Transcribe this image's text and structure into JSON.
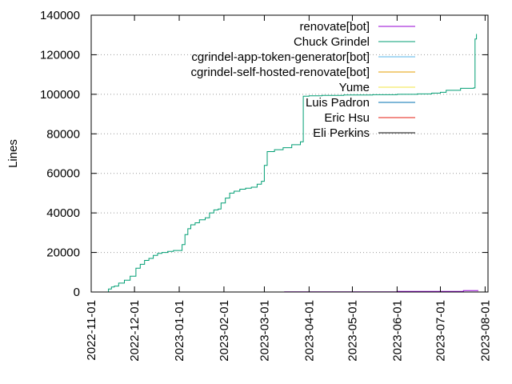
{
  "chart_data": {
    "type": "line",
    "title": "",
    "xlabel": "",
    "ylabel": "Lines",
    "x_type": "date",
    "xlim": [
      "2022-11-01",
      "2023-08-03"
    ],
    "ylim": [
      0,
      140000
    ],
    "x_ticks": [
      "2022-11-01",
      "2022-12-01",
      "2023-01-01",
      "2023-02-01",
      "2023-03-01",
      "2023-04-01",
      "2023-05-01",
      "2023-06-01",
      "2023-07-01",
      "2023-08-01"
    ],
    "y_ticks": [
      0,
      20000,
      40000,
      60000,
      80000,
      100000,
      120000,
      140000
    ],
    "y_tick_labels": [
      "0",
      "20000",
      "40000",
      "60000",
      "80000",
      "100000",
      "120000",
      "140000"
    ],
    "grid": "horizontal dotted",
    "legend_position": "top-right",
    "series": [
      {
        "name": "renovate[bot]",
        "color": "#9400d3",
        "x": [
          "2023-02-01",
          "2023-03-15",
          "2023-06-01",
          "2023-07-17",
          "2023-07-27"
        ],
        "y": [
          0,
          100,
          300,
          700,
          900
        ]
      },
      {
        "name": "Chuck Grindel",
        "color": "#009e73",
        "x": [
          "2022-11-09",
          "2022-11-13",
          "2022-11-15",
          "2022-11-17",
          "2022-11-20",
          "2022-11-24",
          "2022-11-28",
          "2022-12-02",
          "2022-12-05",
          "2022-12-08",
          "2022-12-11",
          "2022-12-14",
          "2022-12-17",
          "2022-12-20",
          "2022-12-24",
          "2022-12-28",
          "2023-01-03",
          "2023-01-05",
          "2023-01-07",
          "2023-01-09",
          "2023-01-12",
          "2023-01-15",
          "2023-01-19",
          "2023-01-22",
          "2023-01-25",
          "2023-01-28",
          "2023-01-30",
          "2023-02-02",
          "2023-02-05",
          "2023-02-08",
          "2023-02-12",
          "2023-02-16",
          "2023-02-20",
          "2023-02-24",
          "2023-02-27",
          "2023-03-01",
          "2023-03-03",
          "2023-03-08",
          "2023-03-14",
          "2023-03-20",
          "2023-03-26",
          "2023-03-28",
          "2023-04-01",
          "2023-04-10",
          "2023-04-25",
          "2023-05-15",
          "2023-06-01",
          "2023-06-15",
          "2023-06-25",
          "2023-07-01",
          "2023-07-05",
          "2023-07-15",
          "2023-07-24",
          "2023-07-25",
          "2023-07-26"
        ],
        "y": [
          0,
          1500,
          2500,
          3000,
          4500,
          6000,
          8000,
          12000,
          14000,
          16000,
          17000,
          18500,
          19500,
          20000,
          20500,
          21000,
          24000,
          29000,
          32000,
          34000,
          35000,
          36500,
          37500,
          40000,
          41500,
          42000,
          45000,
          47500,
          50000,
          51000,
          52000,
          52500,
          53000,
          54500,
          56000,
          64000,
          71000,
          72000,
          73000,
          74500,
          76000,
          99000,
          99200,
          99400,
          99600,
          99800,
          100000,
          100200,
          100600,
          101000,
          102000,
          103000,
          103200,
          128000,
          130500
        ]
      },
      {
        "name": "cgrindel-app-token-generator[bot]",
        "color": "#56b4e9",
        "x": [
          "2023-02-01",
          "2023-07-27"
        ],
        "y": [
          0,
          150
        ]
      },
      {
        "name": "cgrindel-self-hosted-renovate[bot]",
        "color": "#e69f00",
        "x": [
          "2023-03-25",
          "2023-07-27"
        ],
        "y": [
          0,
          200
        ]
      },
      {
        "name": "Yume",
        "color": "#f0e442",
        "x": [
          "2023-03-01",
          "2023-07-27"
        ],
        "y": [
          0,
          100
        ]
      },
      {
        "name": "Luis Padron",
        "color": "#0072b2",
        "x": [
          "2023-02-01",
          "2023-07-27"
        ],
        "y": [
          0,
          150
        ]
      },
      {
        "name": "Eric Hsu",
        "color": "#e51e10",
        "x": [
          "2023-03-20",
          "2023-07-27"
        ],
        "y": [
          0,
          250
        ]
      },
      {
        "name": "Eli Perkins",
        "color": "#000000",
        "x": [
          "2023-02-01",
          "2023-07-27"
        ],
        "y": [
          0,
          100
        ]
      }
    ]
  }
}
